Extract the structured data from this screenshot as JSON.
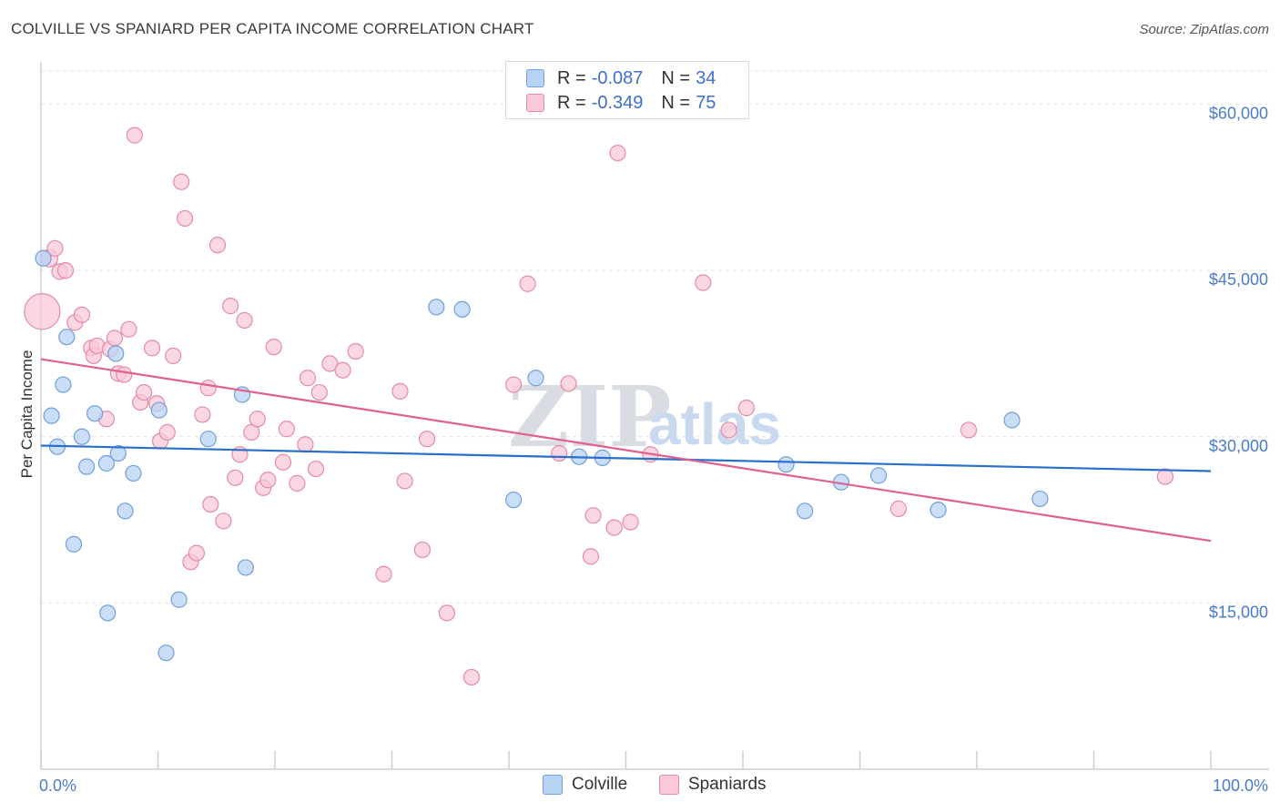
{
  "header": {
    "title": "COLVILLE VS SPANIARD PER CAPITA INCOME CORRELATION CHART",
    "source": "Source: ZipAtlas.com"
  },
  "watermark": {
    "zip": "ZIP",
    "atlas": "atlas"
  },
  "legend": {
    "rows": [
      {
        "r_label": "R =",
        "r_value": "-0.087",
        "n_label": "N =",
        "n_value": "34"
      },
      {
        "r_label": "R =",
        "r_value": "-0.349",
        "n_label": "N =",
        "n_value": "75"
      }
    ]
  },
  "bottom_legend": {
    "colville": "Colville",
    "spaniards": "Spaniards"
  },
  "chart_data": {
    "type": "scatter",
    "title": "COLVILLE VS SPANIARD PER CAPITA INCOME CORRELATION CHART",
    "ylabel": "Per Capita Income",
    "xlabel": "",
    "xlim": [
      0,
      100
    ],
    "ylim": [
      0,
      63000
    ],
    "x_tick_labels": [
      "0.0%",
      "100.0%"
    ],
    "y_ticks": [
      15000,
      30000,
      45000,
      60000
    ],
    "y_tick_labels": [
      "$15,000",
      "$30,000",
      "$45,000",
      "$60,000"
    ],
    "grid": true,
    "legend_position": "top-center",
    "colors": {
      "colville_fill": "#b9d3f5",
      "colville_stroke": "#6f9fdc",
      "colville_line": "#2a6fcc",
      "spaniards_fill": "#f9c9d8",
      "spaniards_stroke": "#e58aa8",
      "spaniards_line": "#e0608e",
      "axis_tick": "#4a7cc7",
      "grid": "#e4e4e4"
    },
    "series": [
      {
        "name": "Colville",
        "r": -0.087,
        "n": 34,
        "trend": {
          "x": [
            0,
            100
          ],
          "y": [
            29200,
            26900
          ]
        },
        "points": [
          {
            "x": 0.2,
            "y": 46100,
            "s": 1
          },
          {
            "x": 0.9,
            "y": 31900,
            "s": 1
          },
          {
            "x": 1.4,
            "y": 29100,
            "s": 1
          },
          {
            "x": 1.9,
            "y": 34700,
            "s": 1
          },
          {
            "x": 2.2,
            "y": 39000,
            "s": 1
          },
          {
            "x": 2.8,
            "y": 20300,
            "s": 1
          },
          {
            "x": 3.5,
            "y": 30000,
            "s": 1
          },
          {
            "x": 3.9,
            "y": 27300,
            "s": 1
          },
          {
            "x": 4.6,
            "y": 32100,
            "s": 1
          },
          {
            "x": 5.6,
            "y": 27600,
            "s": 1
          },
          {
            "x": 5.7,
            "y": 14100,
            "s": 1
          },
          {
            "x": 6.4,
            "y": 37500,
            "s": 1
          },
          {
            "x": 6.6,
            "y": 28500,
            "s": 1
          },
          {
            "x": 7.2,
            "y": 23300,
            "s": 1
          },
          {
            "x": 7.9,
            "y": 26700,
            "s": 1
          },
          {
            "x": 10.1,
            "y": 32400,
            "s": 1
          },
          {
            "x": 10.7,
            "y": 10500,
            "s": 1
          },
          {
            "x": 11.8,
            "y": 15300,
            "s": 1
          },
          {
            "x": 14.3,
            "y": 29800,
            "s": 1
          },
          {
            "x": 17.2,
            "y": 33800,
            "s": 1
          },
          {
            "x": 17.5,
            "y": 18200,
            "s": 1
          },
          {
            "x": 33.8,
            "y": 41700,
            "s": 1
          },
          {
            "x": 36.0,
            "y": 41500,
            "s": 1
          },
          {
            "x": 40.4,
            "y": 24300,
            "s": 1
          },
          {
            "x": 42.3,
            "y": 35300,
            "s": 1
          },
          {
            "x": 46.0,
            "y": 28200,
            "s": 1
          },
          {
            "x": 48.0,
            "y": 28100,
            "s": 1
          },
          {
            "x": 63.7,
            "y": 27500,
            "s": 1
          },
          {
            "x": 65.3,
            "y": 23300,
            "s": 1
          },
          {
            "x": 68.4,
            "y": 25900,
            "s": 1
          },
          {
            "x": 71.6,
            "y": 26500,
            "s": 1
          },
          {
            "x": 76.7,
            "y": 23400,
            "s": 1
          },
          {
            "x": 83.0,
            "y": 31500,
            "s": 1
          },
          {
            "x": 85.4,
            "y": 24400,
            "s": 1
          }
        ]
      },
      {
        "name": "Spaniards",
        "r": -0.349,
        "n": 75,
        "trend": {
          "x": [
            0,
            100
          ],
          "y": [
            37000,
            20600
          ]
        },
        "points": [
          {
            "x": 0.1,
            "y": 41300,
            "s": 2.3
          },
          {
            "x": 0.7,
            "y": 46100,
            "s": 1.1
          },
          {
            "x": 1.2,
            "y": 47000,
            "s": 1
          },
          {
            "x": 1.6,
            "y": 44900,
            "s": 1
          },
          {
            "x": 2.1,
            "y": 45000,
            "s": 1
          },
          {
            "x": 2.9,
            "y": 40300,
            "s": 1
          },
          {
            "x": 3.5,
            "y": 41000,
            "s": 1
          },
          {
            "x": 4.3,
            "y": 38000,
            "s": 1
          },
          {
            "x": 4.5,
            "y": 37300,
            "s": 1
          },
          {
            "x": 4.8,
            "y": 38200,
            "s": 1
          },
          {
            "x": 5.6,
            "y": 31600,
            "s": 1
          },
          {
            "x": 5.9,
            "y": 37900,
            "s": 1
          },
          {
            "x": 6.3,
            "y": 38900,
            "s": 1
          },
          {
            "x": 6.6,
            "y": 35700,
            "s": 1
          },
          {
            "x": 7.1,
            "y": 35600,
            "s": 1
          },
          {
            "x": 7.5,
            "y": 39700,
            "s": 1
          },
          {
            "x": 8.0,
            "y": 57200,
            "s": 1
          },
          {
            "x": 8.5,
            "y": 33100,
            "s": 1
          },
          {
            "x": 8.8,
            "y": 34000,
            "s": 1
          },
          {
            "x": 9.5,
            "y": 38000,
            "s": 1
          },
          {
            "x": 9.9,
            "y": 33000,
            "s": 1
          },
          {
            "x": 10.2,
            "y": 29600,
            "s": 1
          },
          {
            "x": 10.8,
            "y": 30400,
            "s": 1
          },
          {
            "x": 11.3,
            "y": 37300,
            "s": 1
          },
          {
            "x": 12.0,
            "y": 53000,
            "s": 1
          },
          {
            "x": 12.3,
            "y": 49700,
            "s": 1
          },
          {
            "x": 12.8,
            "y": 18700,
            "s": 1
          },
          {
            "x": 13.3,
            "y": 19500,
            "s": 1
          },
          {
            "x": 13.8,
            "y": 32000,
            "s": 1
          },
          {
            "x": 14.3,
            "y": 34400,
            "s": 1
          },
          {
            "x": 14.5,
            "y": 23900,
            "s": 1
          },
          {
            "x": 15.1,
            "y": 47300,
            "s": 1
          },
          {
            "x": 15.6,
            "y": 22400,
            "s": 1
          },
          {
            "x": 16.2,
            "y": 41800,
            "s": 1
          },
          {
            "x": 16.6,
            "y": 26300,
            "s": 1
          },
          {
            "x": 17.0,
            "y": 28400,
            "s": 1
          },
          {
            "x": 17.4,
            "y": 40500,
            "s": 1
          },
          {
            "x": 18.0,
            "y": 30400,
            "s": 1
          },
          {
            "x": 18.5,
            "y": 31600,
            "s": 1
          },
          {
            "x": 19.0,
            "y": 25400,
            "s": 1
          },
          {
            "x": 19.4,
            "y": 26100,
            "s": 1
          },
          {
            "x": 19.9,
            "y": 38100,
            "s": 1
          },
          {
            "x": 20.7,
            "y": 27700,
            "s": 1
          },
          {
            "x": 21.0,
            "y": 30700,
            "s": 1
          },
          {
            "x": 21.9,
            "y": 25800,
            "s": 1
          },
          {
            "x": 22.6,
            "y": 29300,
            "s": 1
          },
          {
            "x": 22.8,
            "y": 35300,
            "s": 1
          },
          {
            "x": 23.5,
            "y": 27100,
            "s": 1
          },
          {
            "x": 23.8,
            "y": 34000,
            "s": 1
          },
          {
            "x": 24.7,
            "y": 36600,
            "s": 1
          },
          {
            "x": 25.8,
            "y": 36000,
            "s": 1
          },
          {
            "x": 26.9,
            "y": 37700,
            "s": 1
          },
          {
            "x": 29.3,
            "y": 17600,
            "s": 1
          },
          {
            "x": 30.7,
            "y": 34100,
            "s": 1
          },
          {
            "x": 31.1,
            "y": 26000,
            "s": 1
          },
          {
            "x": 32.6,
            "y": 19800,
            "s": 1
          },
          {
            "x": 33.0,
            "y": 29800,
            "s": 1
          },
          {
            "x": 34.7,
            "y": 14100,
            "s": 1
          },
          {
            "x": 36.8,
            "y": 8300,
            "s": 1
          },
          {
            "x": 40.4,
            "y": 34700,
            "s": 1
          },
          {
            "x": 41.6,
            "y": 43800,
            "s": 1
          },
          {
            "x": 44.3,
            "y": 28500,
            "s": 1
          },
          {
            "x": 45.1,
            "y": 34800,
            "s": 1
          },
          {
            "x": 47.0,
            "y": 19200,
            "s": 1
          },
          {
            "x": 47.2,
            "y": 22900,
            "s": 1
          },
          {
            "x": 49.0,
            "y": 21800,
            "s": 1
          },
          {
            "x": 49.3,
            "y": 55600,
            "s": 1
          },
          {
            "x": 50.4,
            "y": 22300,
            "s": 1
          },
          {
            "x": 52.1,
            "y": 28400,
            "s": 1
          },
          {
            "x": 56.6,
            "y": 43900,
            "s": 1
          },
          {
            "x": 58.8,
            "y": 30600,
            "s": 1
          },
          {
            "x": 60.3,
            "y": 32600,
            "s": 1
          },
          {
            "x": 73.3,
            "y": 23500,
            "s": 1
          },
          {
            "x": 79.3,
            "y": 30600,
            "s": 1
          },
          {
            "x": 96.1,
            "y": 26400,
            "s": 1
          }
        ]
      }
    ]
  }
}
